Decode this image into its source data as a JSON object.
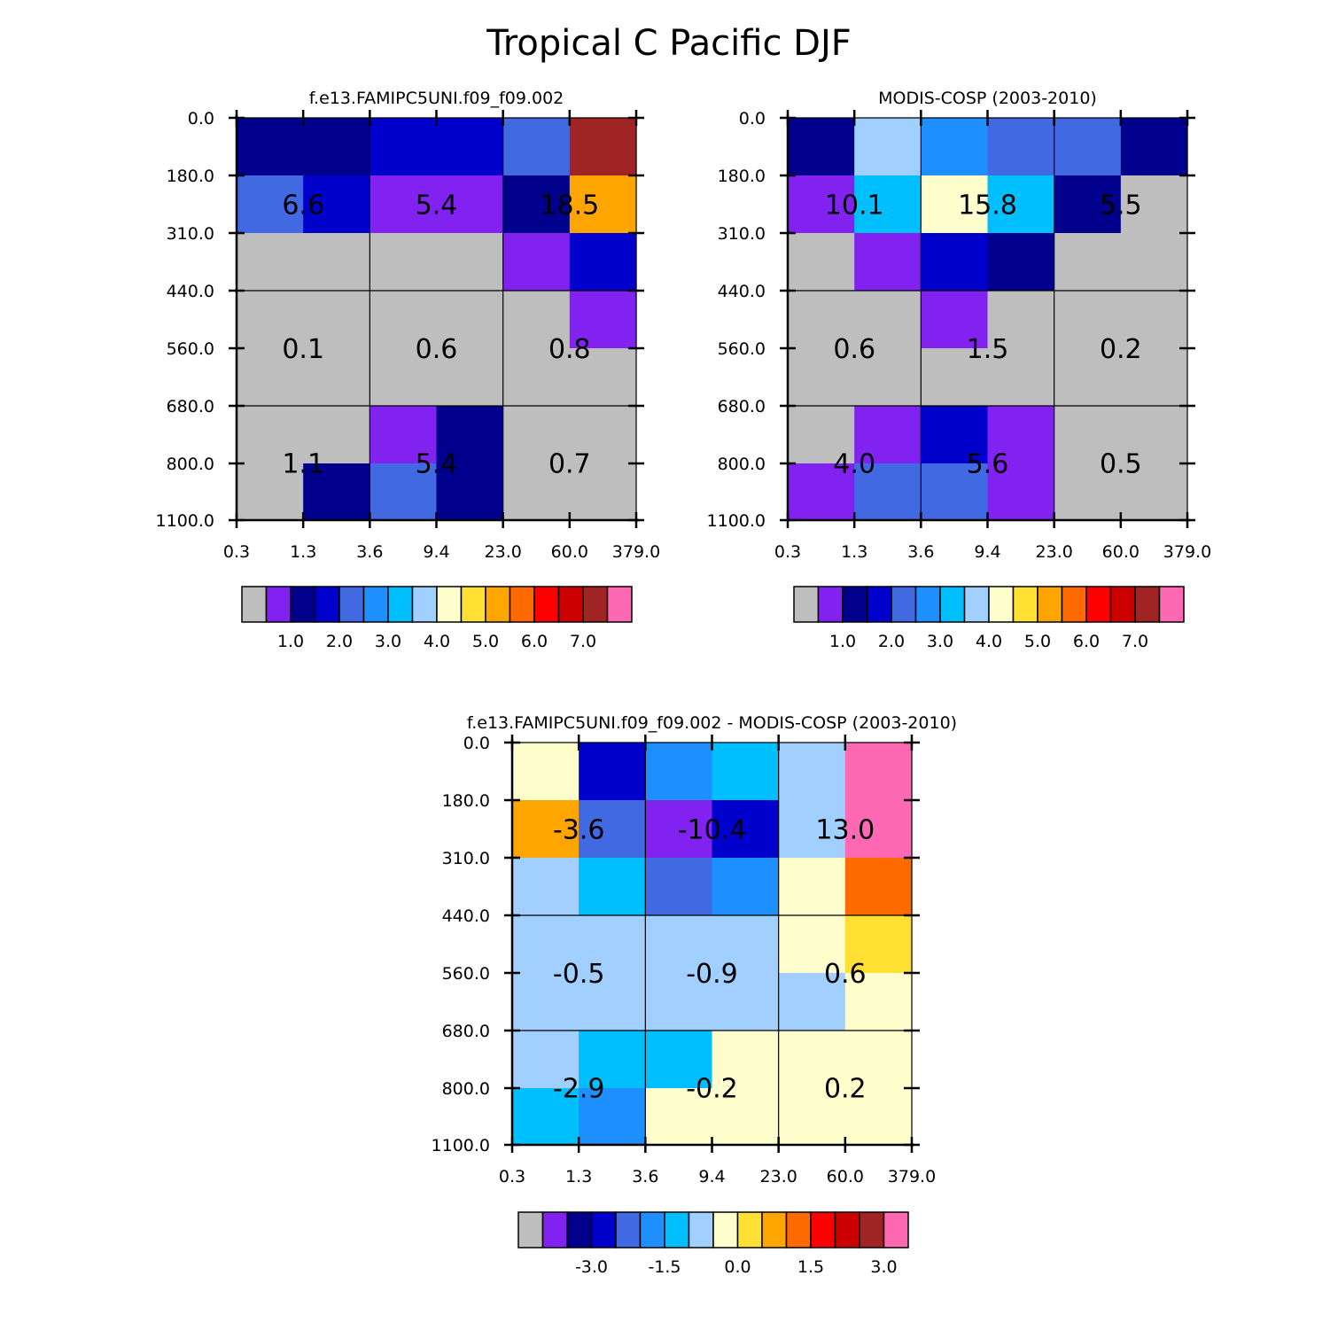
{
  "title": "Tropical C Pacific DJF",
  "palette": [
    "#bebebe",
    "#8122f0",
    "#00008c",
    "#0000cd",
    "#4169e1",
    "#1e8fff",
    "#00bfff",
    "#a1cfff",
    "#fffecd",
    "#ffe033",
    "#ffa500",
    "#ff6a00",
    "#ff0000",
    "#cd0000",
    "#a02424",
    "#ff69b4"
  ],
  "chart_data": [
    {
      "type": "heatmap",
      "title": "f.e13.FAMIPC5UNI.f09_f09.002",
      "x_ticks": [
        "0.3",
        "1.3",
        "3.6",
        "9.4",
        "23.0",
        "60.0",
        "379.0"
      ],
      "y_ticks": [
        "0.0",
        "180.0",
        "310.0",
        "440.0",
        "560.0",
        "680.0",
        "800.0",
        "1100.0"
      ],
      "cells": [
        [
          2,
          2,
          3,
          3,
          4,
          14
        ],
        [
          4,
          3,
          1,
          1,
          2,
          10
        ],
        [
          0,
          0,
          0,
          0,
          1,
          3
        ],
        [
          0,
          0,
          0,
          0,
          0,
          1
        ],
        [
          0,
          0,
          0,
          0,
          0,
          0
        ],
        [
          0,
          0,
          1,
          2,
          0,
          0
        ],
        [
          0,
          2,
          4,
          2,
          0,
          0
        ]
      ],
      "box_labels": [
        [
          "6.6",
          "5.4",
          "18.5"
        ],
        [
          "0.1",
          "0.6",
          "0.8"
        ],
        [
          "1.1",
          "5.4",
          "0.7"
        ]
      ],
      "colorbar_labels": [
        "1.0",
        "2.0",
        "3.0",
        "4.0",
        "5.0",
        "6.0",
        "7.0"
      ]
    },
    {
      "type": "heatmap",
      "title": "MODIS-COSP (2003-2010)",
      "x_ticks": [
        "0.3",
        "1.3",
        "3.6",
        "9.4",
        "23.0",
        "60.0",
        "379.0"
      ],
      "y_ticks": [
        "0.0",
        "180.0",
        "310.0",
        "440.0",
        "560.0",
        "680.0",
        "800.0",
        "1100.0"
      ],
      "cells": [
        [
          2,
          7,
          5,
          4,
          4,
          2
        ],
        [
          1,
          6,
          8,
          6,
          2,
          0
        ],
        [
          0,
          1,
          3,
          2,
          0,
          0
        ],
        [
          0,
          0,
          1,
          0,
          0,
          0
        ],
        [
          0,
          0,
          0,
          0,
          0,
          0
        ],
        [
          0,
          1,
          3,
          1,
          0,
          0
        ],
        [
          1,
          4,
          4,
          1,
          0,
          0
        ]
      ],
      "box_labels": [
        [
          "10.1",
          "15.8",
          "5.5"
        ],
        [
          "0.6",
          "1.5",
          "0.2"
        ],
        [
          "4.0",
          "5.6",
          "0.5"
        ]
      ],
      "colorbar_labels": [
        "1.0",
        "2.0",
        "3.0",
        "4.0",
        "5.0",
        "6.0",
        "7.0"
      ]
    },
    {
      "type": "heatmap",
      "title": "f.e13.FAMIPC5UNI.f09_f09.002 - MODIS-COSP (2003-2010)",
      "x_ticks": [
        "0.3",
        "1.3",
        "3.6",
        "9.4",
        "23.0",
        "60.0",
        "379.0"
      ],
      "y_ticks": [
        "0.0",
        "180.0",
        "310.0",
        "440.0",
        "560.0",
        "680.0",
        "800.0",
        "1100.0"
      ],
      "cells": [
        [
          8,
          3,
          5,
          6,
          7,
          15
        ],
        [
          10,
          4,
          1,
          3,
          7,
          15
        ],
        [
          7,
          6,
          4,
          5,
          8,
          11
        ],
        [
          7,
          7,
          7,
          7,
          8,
          9
        ],
        [
          7,
          7,
          7,
          7,
          7,
          8
        ],
        [
          7,
          6,
          6,
          8,
          8,
          8
        ],
        [
          6,
          5,
          8,
          8,
          8,
          8
        ]
      ],
      "box_labels": [
        [
          "-3.6",
          "-10.4",
          "13.0"
        ],
        [
          "-0.5",
          "-0.9",
          "0.6"
        ],
        [
          "-2.9",
          "-0.2",
          "0.2"
        ]
      ],
      "colorbar_labels": [
        "-3.0",
        "-1.5",
        "0.0",
        "1.5",
        "3.0"
      ]
    }
  ]
}
